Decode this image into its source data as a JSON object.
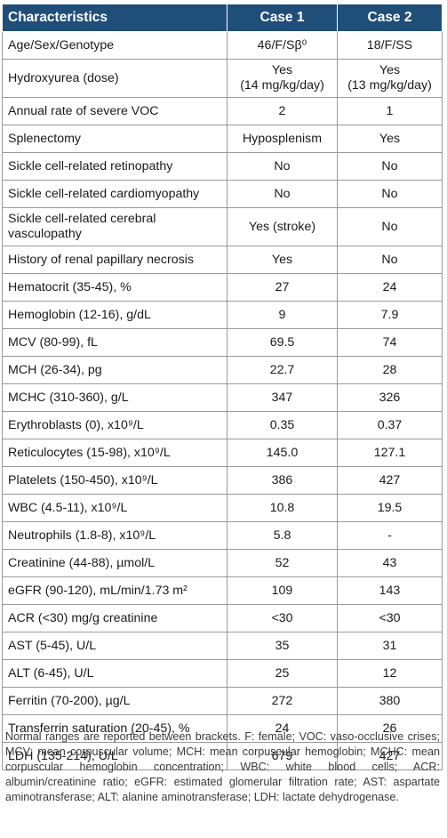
{
  "table": {
    "headers": [
      "Characteristics",
      "Case 1",
      "Case 2"
    ],
    "rows": [
      {
        "label": "Age/Sex/Genotype",
        "case1": "46/F/Sβ⁰",
        "case2": "18/F/SS",
        "size": "r1"
      },
      {
        "label": "Hydroxyurea (dose)",
        "case1": "Yes\n(14 mg/kg/day)",
        "case2": "Yes\n(13 mg/kg/day)",
        "size": "r3"
      },
      {
        "label": "Annual rate of severe VOC",
        "case1": "2",
        "case2": "1",
        "size": "r1"
      },
      {
        "label": "Splenectomy",
        "case1": "Hyposplenism",
        "case2": "Yes",
        "size": "r1"
      },
      {
        "label": "Sickle cell-related retinopathy",
        "case1": "No",
        "case2": "No",
        "size": "r1"
      },
      {
        "label": "Sickle cell-related cardiomyopathy",
        "case1": "No",
        "case2": "No",
        "size": "r1"
      },
      {
        "label": "Sickle cell-related cerebral\nvasculopathy",
        "case1": "Yes (stroke)",
        "case2": "No",
        "size": "r3"
      },
      {
        "label": "History of renal papillary necrosis",
        "case1": "Yes",
        "case2": "No",
        "size": "r1"
      },
      {
        "label": "Hematocrit (35-45), %",
        "case1": "27",
        "case2": "24",
        "size": "r1"
      },
      {
        "label": "Hemoglobin (12-16), g/dL",
        "case1": "9",
        "case2": "7.9",
        "size": "r1"
      },
      {
        "label": "MCV (80-99), fL",
        "case1": "69.5",
        "case2": "74",
        "size": "r1"
      },
      {
        "label": "MCH (26-34), pg",
        "case1": "22.7",
        "case2": "28",
        "size": "r1"
      },
      {
        "label": "MCHC (310-360), g/L",
        "case1": "347",
        "case2": "326",
        "size": "r1"
      },
      {
        "label": "Erythroblasts (0), x10⁹/L",
        "case1": "0.35",
        "case2": "0.37",
        "size": "r1"
      },
      {
        "label": "Reticulocytes (15-98), x10⁹/L",
        "case1": "145.0",
        "case2": "127.1",
        "size": "r1"
      },
      {
        "label": "Platelets (150-450), x10⁹/L",
        "case1": "386",
        "case2": "427",
        "size": "r1"
      },
      {
        "label": "WBC (4.5-11), x10⁹/L",
        "case1": "10.8",
        "case2": "19.5",
        "size": "r1"
      },
      {
        "label": "Neutrophils (1.8-8), x10⁹/L",
        "case1": "5.8",
        "case2": "-",
        "size": "r1"
      },
      {
        "label": "Creatinine (44-88), µmol/L",
        "case1": "52",
        "case2": "43",
        "size": "r1"
      },
      {
        "label": "eGFR (90-120), mL/min/1.73 m²",
        "case1": "109",
        "case2": "143",
        "size": "r1"
      },
      {
        "label": "ACR (<30) mg/g creatinine",
        "case1": "<30",
        "case2": "<30",
        "size": "r1"
      },
      {
        "label": "AST (5-45), U/L",
        "case1": "35",
        "case2": "31",
        "size": "r1"
      },
      {
        "label": "ALT (6-45), U/L",
        "case1": "25",
        "case2": "12",
        "size": "r1"
      },
      {
        "label": "Ferritin (70-200), µg/L",
        "case1": "272",
        "case2": "380",
        "size": "r1"
      },
      {
        "label": "Transferrin saturation (20-45), %",
        "case1": "24",
        "case2": "26",
        "size": "r1"
      },
      {
        "label": "LDH (135-214), U/L",
        "case1": "679",
        "case2": "427",
        "size": "r1"
      }
    ]
  },
  "footnote": "Normal ranges are reported between brackets. F: female; VOC: vaso-occlusive crises; MCV: mean corpuscular volume; MCH: mean corpuscular hemoglobin; MCHC: mean corpuscular hemoglobin concentration; WBC: white blood cells; ACR: albumin/creatinine ratio; eGFR: estimated glomerular filtration rate; AST: aspartate aminotransferase; ALT: alanine aminotransferase; LDH: lactate dehydrogenase.",
  "colors": {
    "header_bg": "#1f4e79",
    "header_text": "#ffffff",
    "border": "#9a9a9a"
  }
}
